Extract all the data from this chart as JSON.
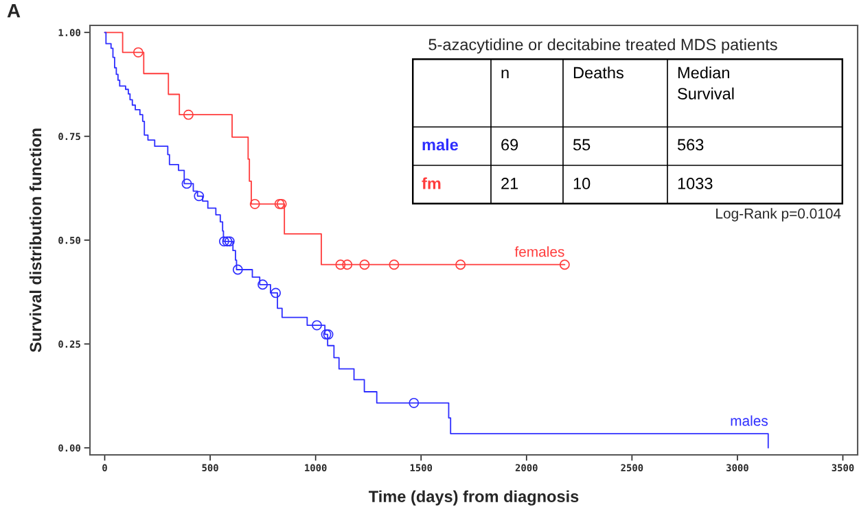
{
  "chart_data": {
    "type": "step",
    "xlabel": "Time (days) from diagnosis",
    "ylabel": "Survival distribution function",
    "xlim": [
      -70,
      3570
    ],
    "xticks": [
      0,
      500,
      1000,
      1500,
      2000,
      2500,
      3000,
      3500
    ],
    "ylim": [
      -0.017,
      1.017
    ],
    "yticks": [
      {
        "value": 0,
        "label": "0.00"
      },
      {
        "value": 0.25,
        "label": "0.25"
      },
      {
        "value": 0.5,
        "label": "0.50"
      },
      {
        "value": 0.75,
        "label": "0.75"
      },
      {
        "value": 1,
        "label": "1.00"
      }
    ],
    "grid": false,
    "legend": false,
    "series": [
      {
        "name": "females",
        "color": "#ff3b3b",
        "x": [
          0,
          85,
          185,
          302,
          354,
          604,
          680,
          686,
          695,
          852,
          1027,
          2181
        ],
        "values": [
          1.0,
          0.952,
          0.901,
          0.851,
          0.802,
          0.748,
          0.695,
          0.642,
          0.587,
          0.515,
          0.441,
          0.441
        ]
      },
      {
        "type": "scatter",
        "marker": "circle",
        "color": "#ff3b3b",
        "x": [
          159,
          397,
          712,
          829,
          839,
          1118,
          1150,
          1232,
          1372,
          1687,
          2181
        ],
        "values": [
          0.952,
          0.802,
          0.587,
          0.587,
          0.587,
          0.441,
          0.441,
          0.441,
          0.441,
          0.441,
          0.441
        ]
      },
      {
        "name": "males",
        "color": "#2e2eff",
        "x": [
          0,
          6,
          30,
          39,
          47,
          55,
          63,
          71,
          99,
          112,
          120,
          131,
          145,
          167,
          180,
          188,
          205,
          237,
          299,
          307,
          350,
          377,
          420,
          440,
          464,
          489,
          527,
          548,
          559,
          563,
          608,
          620,
          625,
          700,
          735,
          786,
          819,
          841,
          960,
          1044,
          1057,
          1087,
          1111,
          1182,
          1231,
          1290,
          1631,
          1640,
          3146
        ],
        "values": [
          1.0,
          0.973,
          0.962,
          0.94,
          0.915,
          0.899,
          0.885,
          0.871,
          0.863,
          0.852,
          0.838,
          0.825,
          0.814,
          0.802,
          0.786,
          0.753,
          0.741,
          0.726,
          0.706,
          0.682,
          0.668,
          0.636,
          0.618,
          0.606,
          0.594,
          0.577,
          0.561,
          0.544,
          0.522,
          0.497,
          0.475,
          0.452,
          0.429,
          0.411,
          0.393,
          0.373,
          0.336,
          0.314,
          0.295,
          0.273,
          0.246,
          0.217,
          0.19,
          0.164,
          0.135,
          0.108,
          0.072,
          0.034,
          0.0
        ]
      },
      {
        "type": "scatter",
        "marker": "circle",
        "color": "#2e2eff",
        "x": [
          389,
          447,
          566,
          581,
          592,
          631,
          749,
          811,
          1006,
          1050,
          1060,
          1466
        ],
        "values": [
          0.636,
          0.606,
          0.497,
          0.497,
          0.497,
          0.429,
          0.393,
          0.373,
          0.295,
          0.273,
          0.273,
          0.108
        ]
      }
    ],
    "annotations": [
      "A",
      "5-azacytidine or decitabine treated MDS patients",
      "n",
      "Deaths",
      "Median\nSurvival",
      "male",
      "69",
      "55",
      "563",
      "fm",
      "21",
      "10",
      "1033",
      "Log-Rank p=0.0104"
    ]
  }
}
